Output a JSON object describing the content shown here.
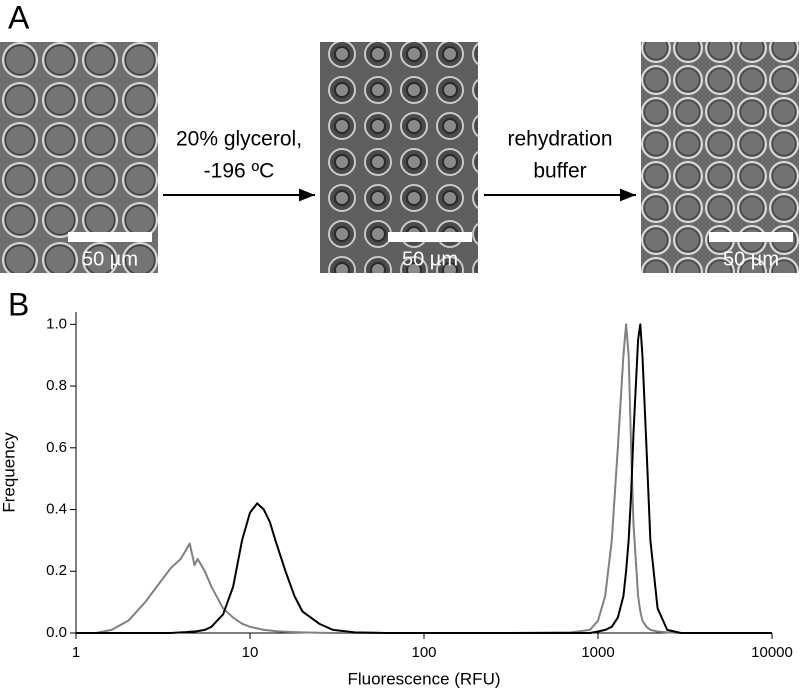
{
  "panel_a": {
    "label": "A",
    "images": [
      {
        "scale_bar": "50 µm"
      },
      {
        "scale_bar": "50 µm"
      },
      {
        "scale_bar": "50 µm"
      }
    ],
    "arrows": [
      {
        "lines": [
          "20% glycerol,",
          "-196 ºC"
        ]
      },
      {
        "lines": [
          "rehydration",
          "buffer"
        ]
      }
    ]
  },
  "panel_b": {
    "label": "B"
  },
  "chart_data": {
    "type": "line",
    "xscale": "log",
    "xlabel": "Fluorescence (RFU)",
    "ylabel": "Frequency",
    "xlim": [
      1,
      10000
    ],
    "xticks": [
      1,
      10,
      100,
      1000,
      10000
    ],
    "ylim": [
      0,
      1.04
    ],
    "yticks": [
      {
        "value": 0,
        "label": "0.0"
      },
      0.2,
      0.4,
      0.6,
      0.8,
      {
        "value": 1,
        "label": "1.0"
      }
    ],
    "x": [
      1,
      1.3,
      1.6,
      2,
      2.5,
      3,
      3.5,
      4,
      4.3,
      4.5,
      4.8,
      5,
      5.5,
      6,
      7,
      8,
      9,
      10,
      11,
      12,
      13,
      14,
      16,
      18,
      20,
      25,
      30,
      40,
      60,
      100,
      300,
      700,
      900,
      1000,
      1100,
      1200,
      1300,
      1400,
      1450,
      1500,
      1550,
      1600,
      1700,
      1750,
      1800,
      1900,
      2000,
      2200,
      2500,
      3000,
      5000,
      10000
    ],
    "series": [
      {
        "color": "#808080",
        "values": [
          0,
          0,
          0.01,
          0.04,
          0.1,
          0.16,
          0.21,
          0.24,
          0.27,
          0.29,
          0.22,
          0.24,
          0.2,
          0.15,
          0.08,
          0.05,
          0.03,
          0.02,
          0.015,
          0.01,
          0.008,
          0.006,
          0.004,
          0.003,
          0.002,
          0.001,
          0,
          0,
          0,
          0,
          0,
          0.002,
          0.01,
          0.04,
          0.12,
          0.3,
          0.6,
          0.9,
          1.0,
          0.9,
          0.6,
          0.35,
          0.12,
          0.07,
          0.04,
          0.02,
          0.01,
          0.005,
          0.002,
          0,
          0,
          0
        ]
      },
      {
        "color": "#000000",
        "values": [
          0,
          0,
          0,
          0,
          0,
          0,
          0,
          0.002,
          0.003,
          0.004,
          0.005,
          0.006,
          0.01,
          0.02,
          0.06,
          0.15,
          0.3,
          0.39,
          0.42,
          0.4,
          0.36,
          0.3,
          0.2,
          0.12,
          0.07,
          0.03,
          0.01,
          0.002,
          0,
          0,
          0,
          0,
          0,
          0.005,
          0.01,
          0.02,
          0.05,
          0.12,
          0.2,
          0.3,
          0.45,
          0.65,
          0.95,
          1.0,
          0.9,
          0.6,
          0.3,
          0.08,
          0.01,
          0,
          0,
          0
        ]
      }
    ]
  }
}
